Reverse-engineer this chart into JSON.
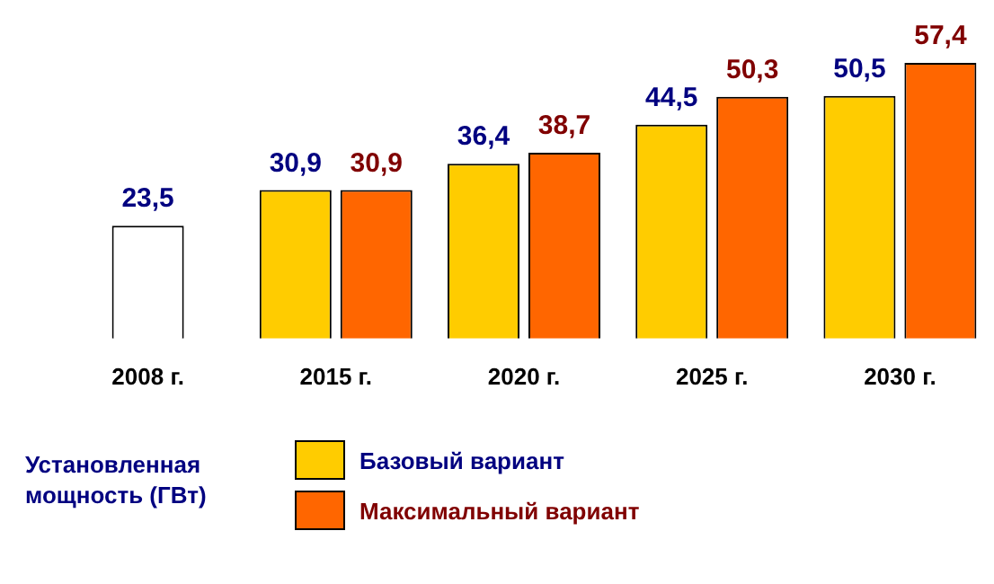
{
  "chart_data": {
    "type": "bar",
    "categories": [
      "2008 г.",
      "2015 г.",
      "2020 г.",
      "2025 г.",
      "2030 г."
    ],
    "tick_labels": "x",
    "legend_title": "Установленная мощность (ГВт)",
    "legend": "bottom left",
    "grid": false,
    "series": [
      {
        "name": "Базовый вариант",
        "color": "#ffcc00",
        "colors": [
          "#ffffff",
          "#ffcc00",
          "#ffcc00",
          "#ffcc00",
          "#ffcc00"
        ],
        "values": [
          23.5,
          30.9,
          36.4,
          44.5,
          50.5
        ],
        "value_labels": [
          "23,5",
          "30,9",
          "36,4",
          "44,5",
          "50,5"
        ]
      },
      {
        "name": "Максимальный вариант",
        "color": "#ff6600",
        "values": [
          null,
          30.9,
          38.7,
          50.3,
          57.4
        ],
        "value_labels": [
          null,
          "30,9",
          "38,7",
          "50,3",
          "57,4"
        ]
      }
    ]
  }
}
